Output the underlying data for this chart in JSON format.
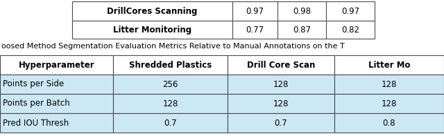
{
  "top_table": {
    "rows": [
      {
        "label": "DrillCores Scanning",
        "vals": [
          "0.97",
          "0.98",
          "0.97"
        ]
      },
      {
        "label": "Litter Monitoring",
        "vals": [
          "0.77",
          "0.87",
          "0.82"
        ]
      }
    ]
  },
  "caption": "oosed Method Segmentation Evaluation Metrics Relative to Manual Annotations on the T",
  "bottom_table": {
    "headers": [
      "Hyperparameter",
      "Shredded Plastics",
      "Drill Core Scan",
      "Litter Mo"
    ],
    "rows": [
      {
        "label": "Points per Side",
        "vals": [
          "256",
          "128",
          "128"
        ]
      },
      {
        "label": "Points per Batch",
        "vals": [
          "128",
          "128",
          "128"
        ]
      },
      {
        "label": "Pred IOU Thresh",
        "vals": [
          "0.7",
          "0.7",
          "0.8"
        ]
      }
    ],
    "header_bg": "#ffffff",
    "row_bg": "#cce8f4"
  },
  "bg_color": "#ffffff",
  "text_color": "#000000",
  "border_color": "#4a4a4a"
}
